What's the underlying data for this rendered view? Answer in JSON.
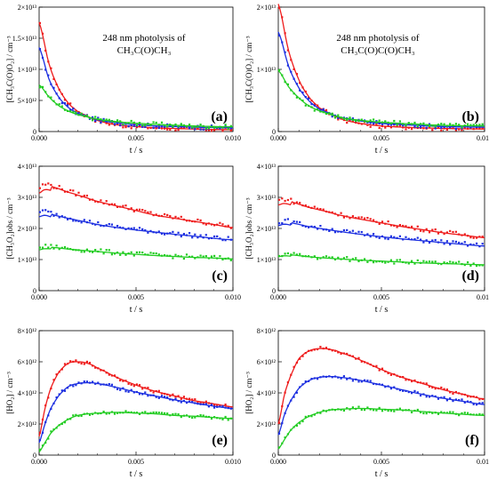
{
  "figure": {
    "panels": [
      {
        "label": "(a)",
        "ylabel": "[CH₃C(O)O₂] / cm⁻³",
        "xlabel": "t / s",
        "ylim": [
          0,
          20000000000000.0
        ],
        "annotation": [
          "248 nm photolysis of",
          "CH₃C(O)CH₃"
        ]
      },
      {
        "label": "(b)",
        "ylabel": "[CH₃C(O)O₂] / cm⁻³",
        "xlabel": "t / s",
        "ylim": [
          0,
          20000000000000.0
        ],
        "annotation": [
          "248 nm photolysis of",
          "CH₃C(O)C(O)CH₃"
        ]
      },
      {
        "label": "(c)",
        "ylabel": "[CH₃O₂]obs / cm⁻³",
        "xlabel": "t / s",
        "ylim": [
          0,
          40000000000000.0
        ],
        "annotation": []
      },
      {
        "label": "(d)",
        "ylabel": "[CH₃O₂]obs / cm⁻³",
        "xlabel": "t / s",
        "ylim": [
          0,
          40000000000000.0
        ],
        "annotation": []
      },
      {
        "label": "(e)",
        "ylabel": "[HO₂] / cm⁻³",
        "xlabel": "t / s",
        "ylim": [
          0,
          8000000000000.0
        ],
        "annotation": []
      },
      {
        "label": "(f)",
        "ylabel": "[HO₂] / cm⁻³",
        "xlabel": "t / s",
        "ylim": [
          0,
          8000000000000.0
        ],
        "annotation": []
      }
    ]
  },
  "colors": {
    "red": "#ee1c1c",
    "blue": "#1c2fe0",
    "green": "#22cc22"
  },
  "chart_data": [
    {
      "type": "line+scatter",
      "panel": "(a)",
      "x_label": "t / s",
      "y_label": "[CH3C(O)O2] / cm-3",
      "xlim": [
        0,
        0.01
      ],
      "ylim": [
        0,
        20000000000000.0
      ],
      "x_ticks": [
        "0.000",
        "0.005",
        "0.010"
      ],
      "y_ticks": [
        "0",
        "5×10¹²",
        "1×10¹³",
        "1.5×10¹³",
        "2×10¹³"
      ],
      "series": [
        {
          "color": "red",
          "kind": "fit",
          "x": [
            0,
            0.0005,
            0.001,
            0.0015,
            0.002,
            0.003,
            0.004,
            0.005,
            0.006,
            0.008,
            0.01
          ],
          "y": [
            17500000000000.0,
            11000000000000.0,
            7000000000000.0,
            4600000000000.0,
            3200000000000.0,
            1800000000000.0,
            1100000000000.0,
            800000000000.0,
            600000000000.0,
            400000000000.0,
            300000000000.0
          ]
        },
        {
          "color": "blue",
          "kind": "data",
          "x": [
            0,
            0.0005,
            0.001,
            0.0015,
            0.002,
            0.003,
            0.004,
            0.005,
            0.006,
            0.008,
            0.01
          ],
          "y": [
            13500000000000.0,
            8500000000000.0,
            5600000000000.0,
            3900000000000.0,
            2900000000000.0,
            1900000000000.0,
            1400000000000.0,
            1100000000000.0,
            900000000000.0,
            700000000000.0,
            600000000000.0
          ]
        },
        {
          "color": "green",
          "kind": "data",
          "x": [
            0,
            0.0005,
            0.001,
            0.0015,
            0.002,
            0.003,
            0.004,
            0.005,
            0.006,
            0.008,
            0.01
          ],
          "y": [
            7500000000000.0,
            5600000000000.0,
            4200000000000.0,
            3300000000000.0,
            2700000000000.0,
            2000000000000.0,
            1600000000000.0,
            1350000000000.0,
            1150000000000.0,
            900000000000.0,
            750000000000.0
          ]
        }
      ]
    },
    {
      "type": "line+scatter",
      "panel": "(b)",
      "x_label": "t / s",
      "y_label": "[CH3C(O)O2] / cm-3",
      "xlim": [
        0,
        0.01
      ],
      "ylim": [
        0,
        20000000000000.0
      ],
      "x_ticks": [
        "0.000",
        "0.005",
        "0.010"
      ],
      "y_ticks": [
        "0",
        "1×10¹³",
        "2×10¹³"
      ],
      "series": [
        {
          "color": "red",
          "kind": "fit",
          "x": [
            0,
            0.0005,
            0.001,
            0.0015,
            0.002,
            0.003,
            0.004,
            0.005,
            0.006,
            0.008,
            0.01
          ],
          "y": [
            20500000000000.0,
            13000000000000.0,
            8300000000000.0,
            5500000000000.0,
            3800000000000.0,
            2100000000000.0,
            1300000000000.0,
            900000000000.0,
            700000000000.0,
            500000000000.0,
            400000000000.0
          ]
        },
        {
          "color": "blue",
          "kind": "data",
          "x": [
            0,
            0.0005,
            0.001,
            0.0015,
            0.002,
            0.003,
            0.004,
            0.005,
            0.006,
            0.008,
            0.01
          ],
          "y": [
            16000000000000.0,
            10500000000000.0,
            7000000000000.0,
            4900000000000.0,
            3600000000000.0,
            2300000000000.0,
            1700000000000.0,
            1300000000000.0,
            1100000000000.0,
            800000000000.0,
            700000000000.0
          ]
        },
        {
          "color": "green",
          "kind": "data",
          "x": [
            0,
            0.0005,
            0.001,
            0.0015,
            0.002,
            0.003,
            0.004,
            0.005,
            0.006,
            0.008,
            0.01
          ],
          "y": [
            9800000000000.0,
            7200000000000.0,
            5400000000000.0,
            4100000000000.0,
            3300000000000.0,
            2300000000000.0,
            1800000000000.0,
            1500000000000.0,
            1300000000000.0,
            1000000000000.0,
            900000000000.0
          ]
        }
      ]
    },
    {
      "type": "line+scatter",
      "panel": "(c)",
      "x_label": "t / s",
      "y_label": "[CH3O2]obs / cm-3",
      "xlim": [
        0,
        0.01
      ],
      "ylim": [
        0,
        40000000000000.0
      ],
      "x_ticks": [
        "0.000",
        "0.005",
        "0.010"
      ],
      "y_ticks": [
        "0",
        "1×10¹³",
        "2×10¹³",
        "3×10¹³",
        "4×10¹³"
      ],
      "series": [
        {
          "color": "red",
          "kind": "data",
          "x": [
            0,
            0.0003,
            0.0008,
            0.0015,
            0.002,
            0.003,
            0.004,
            0.005,
            0.006,
            0.007,
            0.008,
            0.009,
            0.01
          ],
          "y": [
            33000000000000.0,
            34200000000000.0,
            33500000000000.0,
            32000000000000.0,
            31000000000000.0,
            29000000000000.0,
            27500000000000.0,
            26000000000000.0,
            24500000000000.0,
            23500000000000.0,
            22500000000000.0,
            21500000000000.0,
            20500000000000.0
          ]
        },
        {
          "color": "blue",
          "kind": "data",
          "x": [
            0,
            0.0003,
            0.0008,
            0.0015,
            0.002,
            0.003,
            0.004,
            0.005,
            0.006,
            0.007,
            0.008,
            0.009,
            0.01
          ],
          "y": [
            25000000000000.0,
            25500000000000.0,
            24500000000000.0,
            23500000000000.0,
            22800000000000.0,
            21500000000000.0,
            20500000000000.0,
            19700000000000.0,
            19000000000000.0,
            18300000000000.0,
            17700000000000.0,
            17000000000000.0,
            16500000000000.0
          ]
        },
        {
          "color": "green",
          "kind": "data",
          "x": [
            0,
            0.0003,
            0.0008,
            0.0015,
            0.002,
            0.003,
            0.004,
            0.005,
            0.006,
            0.007,
            0.008,
            0.009,
            0.01
          ],
          "y": [
            13800000000000.0,
            14200000000000.0,
            14000000000000.0,
            13500000000000.0,
            13200000000000.0,
            12700000000000.0,
            12200000000000.0,
            11800000000000.0,
            11400000000000.0,
            11100000000000.0,
            10800000000000.0,
            10600000000000.0,
            10300000000000.0
          ]
        }
      ]
    },
    {
      "type": "line+scatter",
      "panel": "(d)",
      "x_label": "t / s",
      "y_label": "[CH3O2]obs / cm-3",
      "xlim": [
        0,
        0.01
      ],
      "ylim": [
        0,
        40000000000000.0
      ],
      "x_ticks": [
        "0.000",
        "0.005",
        "0.010"
      ],
      "y_ticks": [
        "0",
        "1×10¹³",
        "2×10¹³",
        "3×10¹³",
        "4×10¹³"
      ],
      "series": [
        {
          "color": "red",
          "kind": "data",
          "x": [
            0,
            0.0003,
            0.0008,
            0.0015,
            0.002,
            0.003,
            0.004,
            0.005,
            0.006,
            0.007,
            0.008,
            0.009,
            0.01
          ],
          "y": [
            29000000000000.0,
            29500000000000.0,
            28500000000000.0,
            27000000000000.0,
            26200000000000.0,
            24500000000000.0,
            23200000000000.0,
            22000000000000.0,
            20800000000000.0,
            19800000000000.0,
            18800000000000.0,
            18000000000000.0,
            17200000000000.0
          ]
        },
        {
          "color": "blue",
          "kind": "data",
          "x": [
            0,
            0.0003,
            0.0008,
            0.0015,
            0.002,
            0.003,
            0.004,
            0.005,
            0.006,
            0.007,
            0.008,
            0.009,
            0.01
          ],
          "y": [
            22000000000000.0,
            22500000000000.0,
            21800000000000.0,
            20800000000000.0,
            20200000000000.0,
            19200000000000.0,
            18300000000000.0,
            17500000000000.0,
            16800000000000.0,
            16200000000000.0,
            15600000000000.0,
            15000000000000.0,
            14500000000000.0
          ]
        },
        {
          "color": "green",
          "kind": "data",
          "x": [
            0,
            0.0003,
            0.0008,
            0.0015,
            0.002,
            0.003,
            0.004,
            0.005,
            0.006,
            0.007,
            0.008,
            0.009,
            0.01
          ],
          "y": [
            11500000000000.0,
            11800000000000.0,
            11500000000000.0,
            11000000000000.0,
            10700000000000.0,
            10300000000000.0,
            9900000000000.0,
            9600000000000.0,
            9300000000000.0,
            9000000000000.0,
            8800000000000.0,
            8600000000000.0,
            8400000000000.0
          ]
        }
      ]
    },
    {
      "type": "line+scatter",
      "panel": "(e)",
      "x_label": "t / s",
      "y_label": "[HO2] / cm-3",
      "xlim": [
        0,
        0.01
      ],
      "ylim": [
        0,
        8000000000000.0
      ],
      "x_ticks": [
        "0.000",
        "0.005",
        "0.010"
      ],
      "y_ticks": [
        "0",
        "2×10¹²",
        "4×10¹²",
        "6×10¹²",
        "8×10¹²"
      ],
      "series": [
        {
          "color": "red",
          "kind": "data",
          "x": [
            0,
            0.0003,
            0.0006,
            0.001,
            0.0015,
            0.002,
            0.0025,
            0.003,
            0.004,
            0.005,
            0.006,
            0.007,
            0.008,
            0.009,
            0.01
          ],
          "y": [
            1200000000000.0,
            3000000000000.0,
            4300000000000.0,
            5300000000000.0,
            5900000000000.0,
            6000000000000.0,
            5900000000000.0,
            5600000000000.0,
            5000000000000.0,
            4500000000000.0,
            4100000000000.0,
            3800000000000.0,
            3500000000000.0,
            3300000000000.0,
            3100000000000.0
          ]
        },
        {
          "color": "blue",
          "kind": "data",
          "x": [
            0,
            0.0003,
            0.0006,
            0.001,
            0.0015,
            0.002,
            0.0025,
            0.003,
            0.004,
            0.005,
            0.006,
            0.007,
            0.008,
            0.009,
            0.01
          ],
          "y": [
            800000000000.0,
            2000000000000.0,
            3000000000000.0,
            3800000000000.0,
            4400000000000.0,
            4600000000000.0,
            4650000000000.0,
            4600000000000.0,
            4350000000000.0,
            4050000000000.0,
            3800000000000.0,
            3550000000000.0,
            3350000000000.0,
            3150000000000.0,
            3000000000000.0
          ]
        },
        {
          "color": "green",
          "kind": "data",
          "x": [
            0,
            0.0003,
            0.0006,
            0.001,
            0.0015,
            0.002,
            0.0025,
            0.003,
            0.004,
            0.005,
            0.006,
            0.007,
            0.008,
            0.009,
            0.01
          ],
          "y": [
            200000000000.0,
            800000000000.0,
            1400000000000.0,
            1900000000000.0,
            2300000000000.0,
            2550000000000.0,
            2650000000000.0,
            2700000000000.0,
            2750000000000.0,
            2700000000000.0,
            2650000000000.0,
            2550000000000.0,
            2500000000000.0,
            2420000000000.0,
            2350000000000.0
          ]
        }
      ]
    },
    {
      "type": "line+scatter",
      "panel": "(f)",
      "x_label": "t / s",
      "y_label": "[HO2] / cm-3",
      "xlim": [
        0,
        0.01
      ],
      "ylim": [
        0,
        8000000000000.0
      ],
      "x_ticks": [
        "0.000",
        "0.005",
        "0.010"
      ],
      "y_ticks": [
        "0",
        "2×10¹²",
        "4×10¹²",
        "6×10¹²",
        "8×10¹²"
      ],
      "series": [
        {
          "color": "red",
          "kind": "data",
          "x": [
            0,
            0.0003,
            0.0006,
            0.001,
            0.0015,
            0.002,
            0.0025,
            0.003,
            0.004,
            0.005,
            0.006,
            0.007,
            0.008,
            0.009,
            0.01
          ],
          "y": [
            2000000000000.0,
            3900000000000.0,
            5100000000000.0,
            6200000000000.0,
            6700000000000.0,
            6850000000000.0,
            6800000000000.0,
            6600000000000.0,
            6100000000000.0,
            5500000000000.0,
            5000000000000.0,
            4600000000000.0,
            4200000000000.0,
            3900000000000.0,
            3600000000000.0
          ]
        },
        {
          "color": "blue",
          "kind": "data",
          "x": [
            0,
            0.0003,
            0.0006,
            0.001,
            0.0015,
            0.002,
            0.0025,
            0.003,
            0.004,
            0.005,
            0.006,
            0.007,
            0.008,
            0.009,
            0.01
          ],
          "y": [
            1300000000000.0,
            2600000000000.0,
            3500000000000.0,
            4300000000000.0,
            4800000000000.0,
            5000000000000.0,
            5050000000000.0,
            5000000000000.0,
            4800000000000.0,
            4500000000000.0,
            4200000000000.0,
            3900000000000.0,
            3650000000000.0,
            3450000000000.0,
            3250000000000.0
          ]
        },
        {
          "color": "green",
          "kind": "data",
          "x": [
            0,
            0.0003,
            0.0006,
            0.001,
            0.0015,
            0.002,
            0.0025,
            0.003,
            0.004,
            0.005,
            0.006,
            0.007,
            0.008,
            0.009,
            0.01
          ],
          "y": [
            400000000000.0,
            1000000000000.0,
            1600000000000.0,
            2100000000000.0,
            2500000000000.0,
            2750000000000.0,
            2900000000000.0,
            2950000000000.0,
            3000000000000.0,
            2950000000000.0,
            2900000000000.0,
            2800000000000.0,
            2700000000000.0,
            2620000000000.0,
            2550000000000.0
          ]
        }
      ]
    }
  ]
}
